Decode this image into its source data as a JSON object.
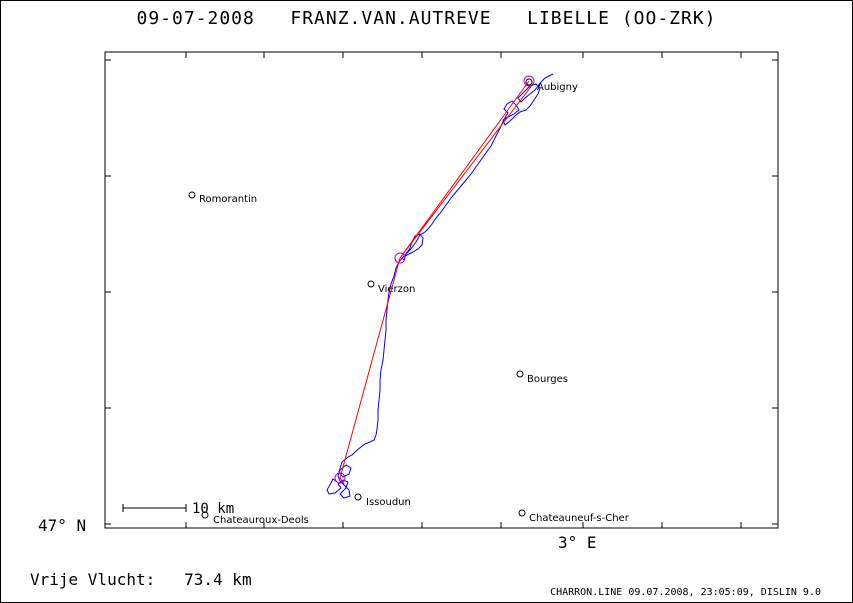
{
  "title": {
    "date": "09-07-2008",
    "pilot": "FRANZ.VAN.AUTREVE",
    "glider": "LIBELLE (OO-ZRK)"
  },
  "axes": {
    "lat_label": "47° N",
    "lon_label": "3° E"
  },
  "scale": {
    "label": "10 km"
  },
  "cities": [
    {
      "name": "Aubigny"
    },
    {
      "name": "Romorantin"
    },
    {
      "name": "Vierzon"
    },
    {
      "name": "Bourges"
    },
    {
      "name": "Issoudun"
    },
    {
      "name": "Chateauroux-Deols"
    },
    {
      "name": "Chateauneuf-s-Cher"
    }
  ],
  "distance": {
    "label": "Vrije Vlucht:",
    "value": "73.4 km"
  },
  "footer": "CHARRON.LINE 09.07.2008, 23:05:09, DISLIN 9.0",
  "colors": {
    "track": "#0000ff",
    "task": "#ff0000",
    "turnpoint": "#c000c0",
    "frame": "#000000"
  }
}
